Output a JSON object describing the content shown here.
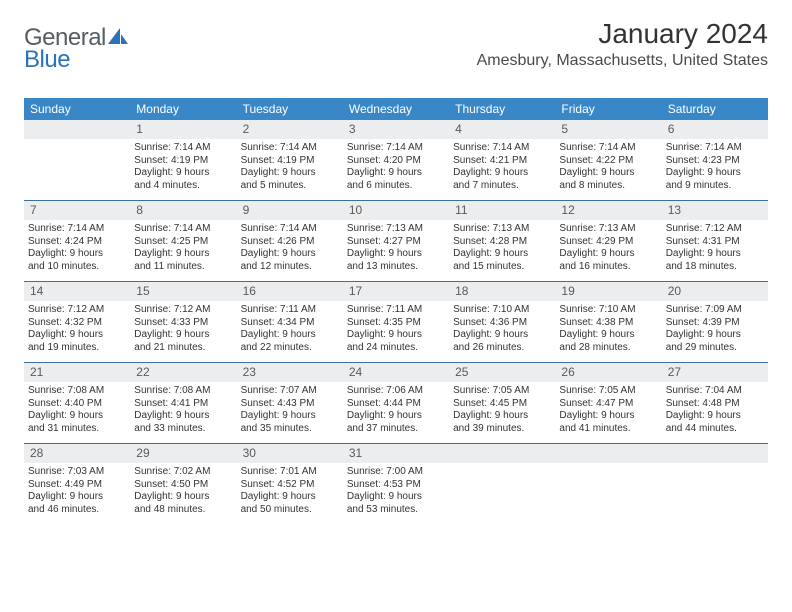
{
  "brand": {
    "word1": "General",
    "word2": "Blue"
  },
  "title": "January 2024",
  "subtitle": "Amesbury, Massachusetts, United States",
  "colors": {
    "header_bg": "#3a87c8",
    "header_text": "#ffffff",
    "daynum_bg": "#ecedee",
    "week_divider": "#3a6f9e",
    "body_text": "#333333",
    "logo_gray": "#555c63",
    "logo_blue": "#2a73b8"
  },
  "typography": {
    "title_fontsize": 28,
    "subtitle_fontsize": 16,
    "dow_fontsize": 12,
    "daynum_fontsize": 12,
    "body_fontsize": 10
  },
  "days_of_week": [
    "Sunday",
    "Monday",
    "Tuesday",
    "Wednesday",
    "Thursday",
    "Friday",
    "Saturday"
  ],
  "weeks": [
    [
      {
        "num": "",
        "sunrise": "",
        "sunset": "",
        "daylight1": "",
        "daylight2": ""
      },
      {
        "num": "1",
        "sunrise": "Sunrise: 7:14 AM",
        "sunset": "Sunset: 4:19 PM",
        "daylight1": "Daylight: 9 hours",
        "daylight2": "and 4 minutes."
      },
      {
        "num": "2",
        "sunrise": "Sunrise: 7:14 AM",
        "sunset": "Sunset: 4:19 PM",
        "daylight1": "Daylight: 9 hours",
        "daylight2": "and 5 minutes."
      },
      {
        "num": "3",
        "sunrise": "Sunrise: 7:14 AM",
        "sunset": "Sunset: 4:20 PM",
        "daylight1": "Daylight: 9 hours",
        "daylight2": "and 6 minutes."
      },
      {
        "num": "4",
        "sunrise": "Sunrise: 7:14 AM",
        "sunset": "Sunset: 4:21 PM",
        "daylight1": "Daylight: 9 hours",
        "daylight2": "and 7 minutes."
      },
      {
        "num": "5",
        "sunrise": "Sunrise: 7:14 AM",
        "sunset": "Sunset: 4:22 PM",
        "daylight1": "Daylight: 9 hours",
        "daylight2": "and 8 minutes."
      },
      {
        "num": "6",
        "sunrise": "Sunrise: 7:14 AM",
        "sunset": "Sunset: 4:23 PM",
        "daylight1": "Daylight: 9 hours",
        "daylight2": "and 9 minutes."
      }
    ],
    [
      {
        "num": "7",
        "sunrise": "Sunrise: 7:14 AM",
        "sunset": "Sunset: 4:24 PM",
        "daylight1": "Daylight: 9 hours",
        "daylight2": "and 10 minutes."
      },
      {
        "num": "8",
        "sunrise": "Sunrise: 7:14 AM",
        "sunset": "Sunset: 4:25 PM",
        "daylight1": "Daylight: 9 hours",
        "daylight2": "and 11 minutes."
      },
      {
        "num": "9",
        "sunrise": "Sunrise: 7:14 AM",
        "sunset": "Sunset: 4:26 PM",
        "daylight1": "Daylight: 9 hours",
        "daylight2": "and 12 minutes."
      },
      {
        "num": "10",
        "sunrise": "Sunrise: 7:13 AM",
        "sunset": "Sunset: 4:27 PM",
        "daylight1": "Daylight: 9 hours",
        "daylight2": "and 13 minutes."
      },
      {
        "num": "11",
        "sunrise": "Sunrise: 7:13 AM",
        "sunset": "Sunset: 4:28 PM",
        "daylight1": "Daylight: 9 hours",
        "daylight2": "and 15 minutes."
      },
      {
        "num": "12",
        "sunrise": "Sunrise: 7:13 AM",
        "sunset": "Sunset: 4:29 PM",
        "daylight1": "Daylight: 9 hours",
        "daylight2": "and 16 minutes."
      },
      {
        "num": "13",
        "sunrise": "Sunrise: 7:12 AM",
        "sunset": "Sunset: 4:31 PM",
        "daylight1": "Daylight: 9 hours",
        "daylight2": "and 18 minutes."
      }
    ],
    [
      {
        "num": "14",
        "sunrise": "Sunrise: 7:12 AM",
        "sunset": "Sunset: 4:32 PM",
        "daylight1": "Daylight: 9 hours",
        "daylight2": "and 19 minutes."
      },
      {
        "num": "15",
        "sunrise": "Sunrise: 7:12 AM",
        "sunset": "Sunset: 4:33 PM",
        "daylight1": "Daylight: 9 hours",
        "daylight2": "and 21 minutes."
      },
      {
        "num": "16",
        "sunrise": "Sunrise: 7:11 AM",
        "sunset": "Sunset: 4:34 PM",
        "daylight1": "Daylight: 9 hours",
        "daylight2": "and 22 minutes."
      },
      {
        "num": "17",
        "sunrise": "Sunrise: 7:11 AM",
        "sunset": "Sunset: 4:35 PM",
        "daylight1": "Daylight: 9 hours",
        "daylight2": "and 24 minutes."
      },
      {
        "num": "18",
        "sunrise": "Sunrise: 7:10 AM",
        "sunset": "Sunset: 4:36 PM",
        "daylight1": "Daylight: 9 hours",
        "daylight2": "and 26 minutes."
      },
      {
        "num": "19",
        "sunrise": "Sunrise: 7:10 AM",
        "sunset": "Sunset: 4:38 PM",
        "daylight1": "Daylight: 9 hours",
        "daylight2": "and 28 minutes."
      },
      {
        "num": "20",
        "sunrise": "Sunrise: 7:09 AM",
        "sunset": "Sunset: 4:39 PM",
        "daylight1": "Daylight: 9 hours",
        "daylight2": "and 29 minutes."
      }
    ],
    [
      {
        "num": "21",
        "sunrise": "Sunrise: 7:08 AM",
        "sunset": "Sunset: 4:40 PM",
        "daylight1": "Daylight: 9 hours",
        "daylight2": "and 31 minutes."
      },
      {
        "num": "22",
        "sunrise": "Sunrise: 7:08 AM",
        "sunset": "Sunset: 4:41 PM",
        "daylight1": "Daylight: 9 hours",
        "daylight2": "and 33 minutes."
      },
      {
        "num": "23",
        "sunrise": "Sunrise: 7:07 AM",
        "sunset": "Sunset: 4:43 PM",
        "daylight1": "Daylight: 9 hours",
        "daylight2": "and 35 minutes."
      },
      {
        "num": "24",
        "sunrise": "Sunrise: 7:06 AM",
        "sunset": "Sunset: 4:44 PM",
        "daylight1": "Daylight: 9 hours",
        "daylight2": "and 37 minutes."
      },
      {
        "num": "25",
        "sunrise": "Sunrise: 7:05 AM",
        "sunset": "Sunset: 4:45 PM",
        "daylight1": "Daylight: 9 hours",
        "daylight2": "and 39 minutes."
      },
      {
        "num": "26",
        "sunrise": "Sunrise: 7:05 AM",
        "sunset": "Sunset: 4:47 PM",
        "daylight1": "Daylight: 9 hours",
        "daylight2": "and 41 minutes."
      },
      {
        "num": "27",
        "sunrise": "Sunrise: 7:04 AM",
        "sunset": "Sunset: 4:48 PM",
        "daylight1": "Daylight: 9 hours",
        "daylight2": "and 44 minutes."
      }
    ],
    [
      {
        "num": "28",
        "sunrise": "Sunrise: 7:03 AM",
        "sunset": "Sunset: 4:49 PM",
        "daylight1": "Daylight: 9 hours",
        "daylight2": "and 46 minutes."
      },
      {
        "num": "29",
        "sunrise": "Sunrise: 7:02 AM",
        "sunset": "Sunset: 4:50 PM",
        "daylight1": "Daylight: 9 hours",
        "daylight2": "and 48 minutes."
      },
      {
        "num": "30",
        "sunrise": "Sunrise: 7:01 AM",
        "sunset": "Sunset: 4:52 PM",
        "daylight1": "Daylight: 9 hours",
        "daylight2": "and 50 minutes."
      },
      {
        "num": "31",
        "sunrise": "Sunrise: 7:00 AM",
        "sunset": "Sunset: 4:53 PM",
        "daylight1": "Daylight: 9 hours",
        "daylight2": "and 53 minutes."
      },
      {
        "num": "",
        "sunrise": "",
        "sunset": "",
        "daylight1": "",
        "daylight2": ""
      },
      {
        "num": "",
        "sunrise": "",
        "sunset": "",
        "daylight1": "",
        "daylight2": ""
      },
      {
        "num": "",
        "sunrise": "",
        "sunset": "",
        "daylight1": "",
        "daylight2": ""
      }
    ]
  ]
}
